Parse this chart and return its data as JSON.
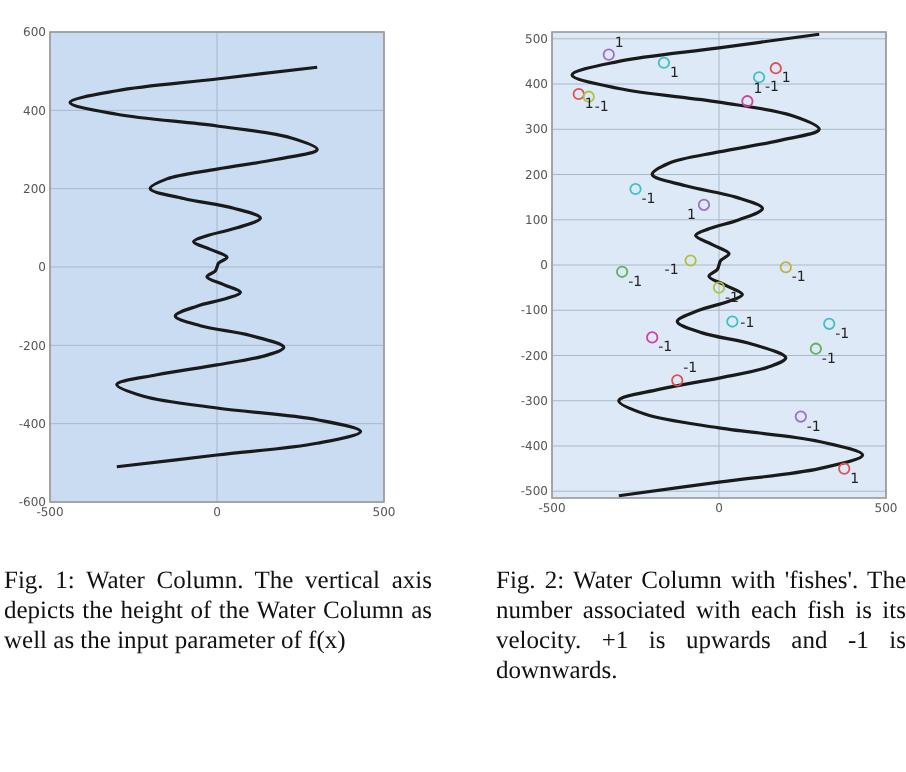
{
  "chart_data": [
    {
      "type": "line",
      "xlim": [
        -500,
        500
      ],
      "xticks": [
        -500,
        0,
        500
      ],
      "ylim": [
        -600,
        600
      ],
      "yticks": [
        -600,
        -400,
        -200,
        0,
        200,
        400,
        600
      ],
      "grid": true,
      "annotations": [
        "Fig. 1: Water Column. The vertical axis depicts the height of the Water Column as well as the input parameter of f(x)"
      ],
      "series": [
        {
          "color": "#1a1a1a",
          "x": [
            300,
            0,
            -300,
            -440,
            -300,
            0,
            220,
            300,
            180,
            0,
            -150,
            -200,
            -100,
            50,
            130,
            60,
            -30,
            -70,
            -20,
            30,
            5,
            0,
            -5,
            -30,
            20,
            70,
            30,
            -60,
            -125,
            -50,
            100,
            200,
            150,
            0,
            -180,
            -300,
            -220,
            0,
            300,
            430,
            300,
            0,
            -300
          ],
          "values": [
            510,
            480,
            450,
            420,
            390,
            360,
            330,
            300,
            275,
            250,
            225,
            200,
            175,
            150,
            125,
            100,
            80,
            65,
            45,
            25,
            10,
            0,
            -10,
            -25,
            -45,
            -65,
            -80,
            -100,
            -125,
            -150,
            -175,
            -205,
            -225,
            -250,
            -275,
            -300,
            -330,
            -360,
            -390,
            -420,
            -450,
            -480,
            -510
          ]
        }
      ]
    },
    {
      "type": "line",
      "xlim": [
        -500,
        500
      ],
      "xticks": [
        -500,
        0,
        500
      ],
      "ylim": [
        -515,
        515
      ],
      "yticks": [
        -500,
        -400,
        -300,
        -200,
        -100,
        0,
        100,
        200,
        300,
        400,
        500
      ],
      "grid": true,
      "annotations": [
        "Fig. 2: Water Column with 'fishes'. The number associated with each fish is its velocity. +1 is upwards and -1 is downwards.",
        {
          "text": "1",
          "x": -330,
          "y": 465
        },
        {
          "text": "1",
          "x": -165,
          "y": 447
        },
        {
          "text": "1",
          "x": 170,
          "y": 435
        },
        {
          "text": "-1",
          "x": 120,
          "y": 415
        },
        {
          "text": "1",
          "x": -420,
          "y": 378
        },
        {
          "text": "-1",
          "x": -390,
          "y": 372
        },
        {
          "text": "1",
          "x": 85,
          "y": 362
        },
        {
          "text": "-1",
          "x": -250,
          "y": 168
        },
        {
          "text": "1",
          "x": -45,
          "y": 133
        },
        {
          "text": "-1",
          "x": -85,
          "y": 10
        },
        {
          "text": "-1",
          "x": -290,
          "y": -15
        },
        {
          "text": "-1",
          "x": 200,
          "y": -5
        },
        {
          "text": "-1",
          "x": 0,
          "y": -50
        },
        {
          "text": "-1",
          "x": 40,
          "y": -125
        },
        {
          "text": "-1",
          "x": 330,
          "y": -130
        },
        {
          "text": "-1",
          "x": -200,
          "y": -160
        },
        {
          "text": "-1",
          "x": 290,
          "y": -185
        },
        {
          "text": "-1",
          "x": -125,
          "y": -255
        },
        {
          "text": "-1",
          "x": 245,
          "y": -335
        },
        {
          "text": "1",
          "x": 375,
          "y": -450
        }
      ],
      "series": [
        {
          "color": "#1a1a1a",
          "x": [
            300,
            0,
            -300,
            -440,
            -300,
            0,
            220,
            300,
            180,
            0,
            -150,
            -200,
            -100,
            50,
            130,
            60,
            -30,
            -70,
            -20,
            30,
            5,
            0,
            -5,
            -30,
            20,
            70,
            30,
            -60,
            -125,
            -50,
            100,
            200,
            150,
            0,
            -180,
            -300,
            -220,
            0,
            300,
            430,
            300,
            0,
            -300
          ],
          "values": [
            510,
            480,
            450,
            420,
            390,
            360,
            330,
            300,
            275,
            250,
            225,
            200,
            175,
            150,
            125,
            100,
            80,
            65,
            45,
            25,
            10,
            0,
            -10,
            -25,
            -45,
            -65,
            -80,
            -100,
            -125,
            -150,
            -175,
            -205,
            -225,
            -250,
            -275,
            -300,
            -330,
            -360,
            -390,
            -420,
            -450,
            -480,
            -510
          ]
        },
        {
          "type": "scatter",
          "marker": "circle",
          "x": [
            -330,
            -165,
            170,
            120,
            -420,
            -390,
            85,
            -250,
            -45,
            -85,
            -290,
            200,
            0,
            40,
            330,
            -200,
            290,
            -125,
            245,
            375
          ],
          "values": [
            465,
            447,
            435,
            415,
            378,
            372,
            362,
            168,
            133,
            10,
            -15,
            -5,
            -50,
            -125,
            -130,
            -160,
            -185,
            -255,
            -335,
            -450
          ],
          "colors": [
            "#a070c0",
            "#40c0c0",
            "#e05050",
            "#40c0c0",
            "#e05050",
            "#b0c040",
            "#d040a0",
            "#40c0c0",
            "#a070c0",
            "#b0c040",
            "#60b060",
            "#c0b040",
            "#b0c040",
            "#40c0c0",
            "#40c0c0",
            "#d040a0",
            "#60b060",
            "#e05050",
            "#a070c0",
            "#e05050"
          ]
        }
      ]
    }
  ]
}
